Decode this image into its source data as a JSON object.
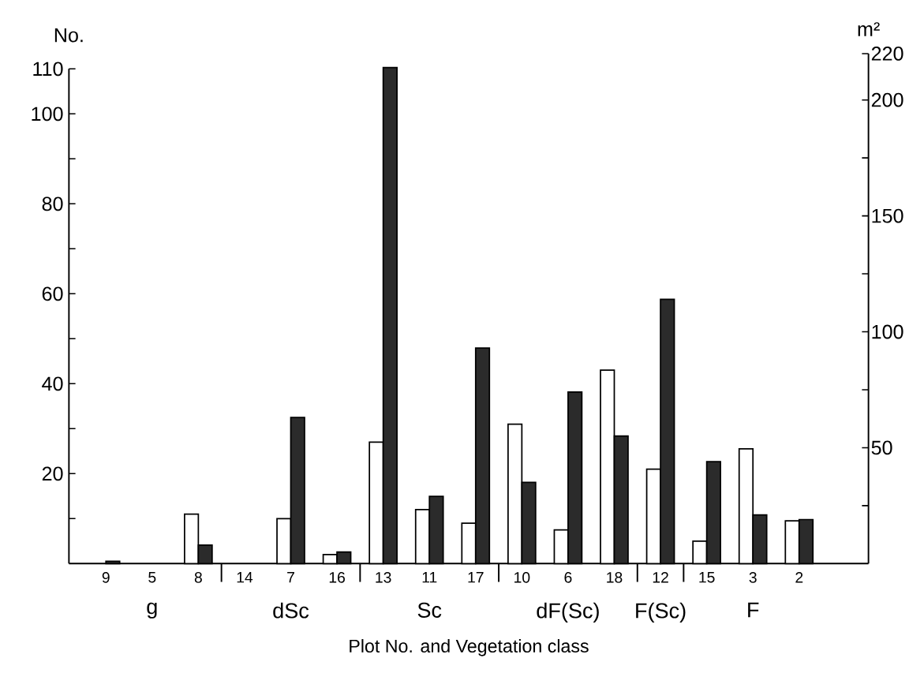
{
  "chart_data": {
    "type": "bar",
    "xlabel": "Plot No. and Vegetation class",
    "ylabel": "No.",
    "y2label": "m²",
    "categories": [
      "9",
      "5",
      "8",
      "14",
      "7",
      "16",
      "13",
      "11",
      "17",
      "10",
      "6",
      "18",
      "12",
      "15",
      "3",
      "2"
    ],
    "series": [
      {
        "color": "#ffffff",
        "values": [
          null,
          null,
          11,
          null,
          10,
          2,
          27,
          12,
          9,
          31,
          7.5,
          43,
          21,
          5,
          25.5,
          9.5
        ]
      },
      {
        "color": "#2b2b2b",
        "axis": "y2",
        "values": [
          1,
          null,
          8,
          null,
          63,
          5,
          214,
          29,
          93,
          35,
          74,
          55,
          114,
          44,
          21,
          19
        ]
      }
    ],
    "ylim": [
      0,
      110
    ],
    "yticks": [
      {
        "value": 10,
        "label": null
      },
      20,
      {
        "value": 30,
        "label": null
      },
      40,
      {
        "value": 50,
        "label": null
      },
      60,
      {
        "value": 70,
        "label": null
      },
      80,
      {
        "value": 90,
        "label": null
      },
      100,
      110
    ],
    "y2lim": [
      0,
      220
    ],
    "y2ticks": [
      {
        "value": 25,
        "label": null
      },
      50,
      {
        "value": 75,
        "label": null
      },
      100,
      {
        "value": 125,
        "label": null
      },
      150,
      {
        "value": 175,
        "label": null
      },
      200,
      220
    ],
    "annotations": [
      "g",
      "dSc",
      "Sc",
      "dF(Sc)",
      "F(Sc)",
      "F"
    ]
  }
}
